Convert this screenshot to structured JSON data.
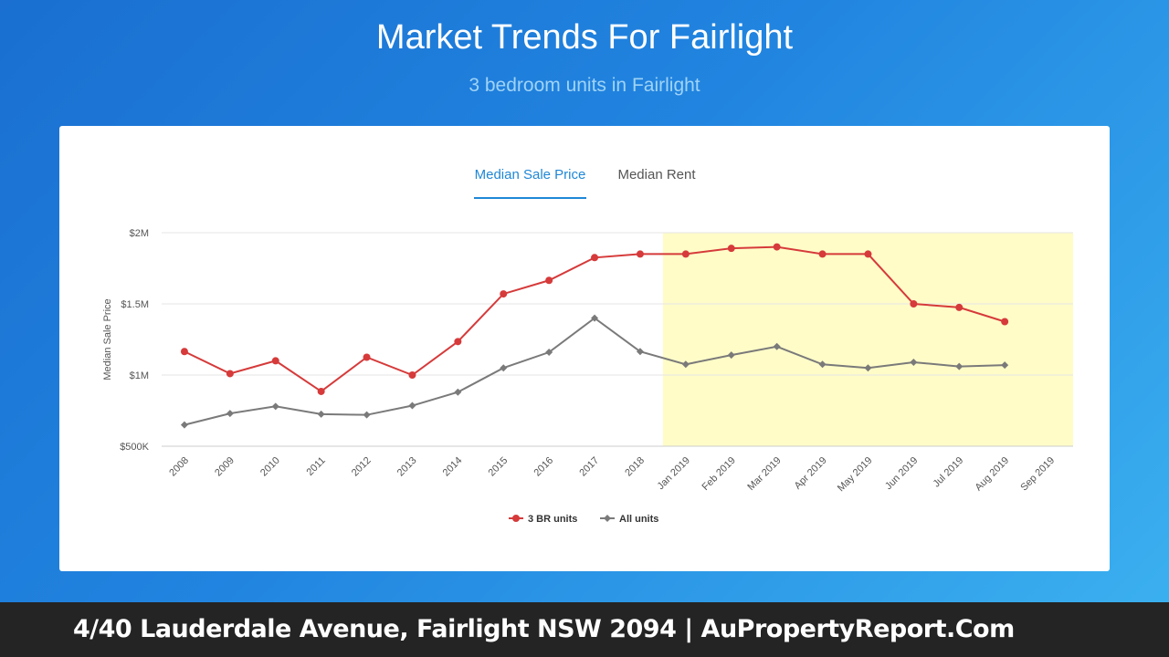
{
  "header": {
    "title": "Market Trends For Fairlight",
    "subtitle": "3 bedroom units in Fairlight"
  },
  "tabs": [
    {
      "label": "Median Sale Price",
      "active": true
    },
    {
      "label": "Median Rent",
      "active": false
    }
  ],
  "colors": {
    "accent": "#1f87d6",
    "series_3br": "#d63a3a",
    "series_all": "#7a7a7a",
    "highlight_band": "#fffcc8"
  },
  "chart_data": {
    "type": "line",
    "ylabel": "Median Sale Price",
    "yticks": [
      "$500K",
      "$1M",
      "$1.5M",
      "$2M"
    ],
    "ylim": [
      500000,
      2000000
    ],
    "grid": true,
    "legend_position": "bottom-center",
    "categories": [
      "2008",
      "2009",
      "2010",
      "2011",
      "2012",
      "2013",
      "2014",
      "2015",
      "2016",
      "2017",
      "2018",
      "Jan 2019",
      "Feb 2019",
      "Mar 2019",
      "Apr 2019",
      "May 2019",
      "Jun 2019",
      "Jul 2019",
      "Aug 2019",
      "Sep 2019"
    ],
    "highlight_range": [
      "Jan 2019",
      "Sep 2019"
    ],
    "series": [
      {
        "name": "3 BR units",
        "marker": "circle",
        "values": [
          1165000,
          1010000,
          1100000,
          885000,
          1125000,
          1000000,
          1235000,
          1570000,
          1665000,
          1825000,
          1850000,
          1850000,
          1890000,
          1900000,
          1850000,
          1850000,
          1500000,
          1475000,
          1375000,
          null
        ]
      },
      {
        "name": "All units",
        "marker": "diamond",
        "values": [
          650000,
          730000,
          780000,
          725000,
          720000,
          785000,
          880000,
          1050000,
          1160000,
          1400000,
          1165000,
          1075000,
          1140000,
          1200000,
          1075000,
          1050000,
          1090000,
          1060000,
          1070000,
          null
        ]
      }
    ]
  },
  "footer": {
    "text": "4/40 Lauderdale Avenue, Fairlight NSW 2094 | AuPropertyReport.Com"
  }
}
